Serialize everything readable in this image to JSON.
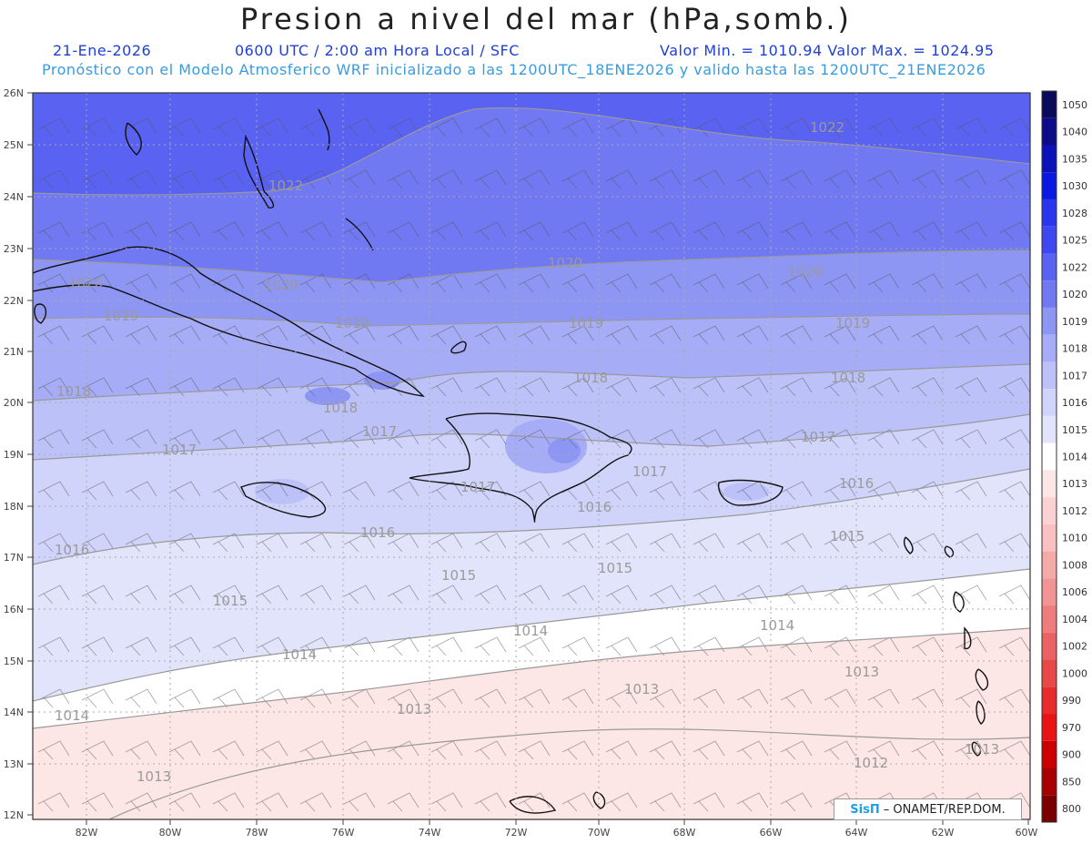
{
  "header": {
    "title": "Presion a nivel del mar (hPa,somb.)",
    "date": "21-Ene-2026",
    "time_line": "0600 UTC / 2:00 am Hora Local / SFC",
    "minmax": "Valor Min. = 1010.94  Valor Max. = 1024.95",
    "model_line": "Pronóstico con el Modelo Atmosferico WRF inicializado a las 1200UTC_18ENE2026 y valido hasta las  1200UTC_21ENE2026"
  },
  "axes": {
    "lat_labels": [
      "26N",
      "25N",
      "24N",
      "23N",
      "22N",
      "21N",
      "20N",
      "19N",
      "18N",
      "17N",
      "16N",
      "15N",
      "14N",
      "13N",
      "12N"
    ],
    "lon_labels": [
      "82W",
      "80W",
      "78W",
      "76W",
      "74W",
      "72W",
      "70W",
      "68W",
      "66W",
      "64W",
      "62W",
      "60W"
    ]
  },
  "colorbar": {
    "levels": [
      "1050",
      "1040",
      "1035",
      "1030",
      "1028",
      "1025",
      "1022",
      "1020",
      "1019",
      "1018",
      "1017",
      "1016",
      "1015",
      "1014",
      "1013",
      "1012",
      "1010",
      "1008",
      "1006",
      "1004",
      "1002",
      "1000",
      "990",
      "970",
      "900",
      "850",
      "800"
    ],
    "colors": [
      "#0a0a5a",
      "#0c0c8a",
      "#0a12b8",
      "#0a18e0",
      "#2a35ee",
      "#3f48f0",
      "#5a62f2",
      "#7078f2",
      "#8e96f4",
      "#a6acf6",
      "#bcc2f8",
      "#d0d4fa",
      "#e2e4fc",
      "#ffffff",
      "#fde6e6",
      "#fbd2d2",
      "#f8c0c0",
      "#f5aaaa",
      "#f29494",
      "#ee7c7c",
      "#ea6262",
      "#e84848",
      "#e82c2c",
      "#e81414",
      "#cc0000",
      "#a80000",
      "#7a0000"
    ]
  },
  "contour_labels": [
    {
      "text": "1022"
    },
    {
      "text": "1022"
    },
    {
      "text": "1020"
    },
    {
      "text": "1020"
    },
    {
      "text": "1020"
    },
    {
      "text": "1020"
    },
    {
      "text": "1019"
    },
    {
      "text": "1019"
    },
    {
      "text": "1019"
    },
    {
      "text": "1019"
    },
    {
      "text": "1018"
    },
    {
      "text": "1018"
    },
    {
      "text": "1018"
    },
    {
      "text": "1018"
    },
    {
      "text": "1017"
    },
    {
      "text": "1017"
    },
    {
      "text": "1017"
    },
    {
      "text": "1017"
    },
    {
      "text": "1017"
    },
    {
      "text": "1016"
    },
    {
      "text": "1016"
    },
    {
      "text": "1016"
    },
    {
      "text": "1016"
    },
    {
      "text": "1015"
    },
    {
      "text": "1015"
    },
    {
      "text": "1015"
    },
    {
      "text": "1015"
    },
    {
      "text": "1014"
    },
    {
      "text": "1014"
    },
    {
      "text": "1014"
    },
    {
      "text": "1014"
    },
    {
      "text": "1013"
    },
    {
      "text": "1013"
    },
    {
      "text": "1013"
    },
    {
      "text": "1013"
    },
    {
      "text": "1013"
    },
    {
      "text": "1012"
    }
  ],
  "credit": {
    "logo": "SisΠ",
    "text": "– ONAMET/REP.DOM."
  }
}
